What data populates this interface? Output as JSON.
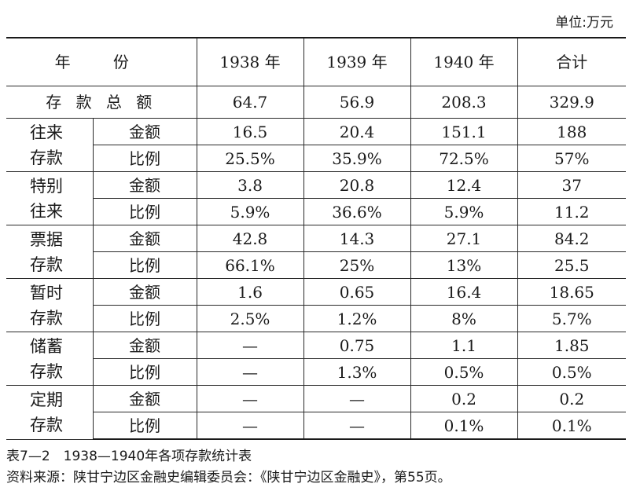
{
  "unit_label": "单位:万元",
  "header": {
    "year_label": "年 份",
    "cols": [
      "1938 年",
      "1939 年",
      "1940 年",
      "合计"
    ]
  },
  "total_row": {
    "label": "存 款 总 额",
    "values": [
      "64.7",
      "56.9",
      "208.3",
      "329.9"
    ]
  },
  "groups": [
    {
      "name_line1": "往来",
      "name_line2": "存款",
      "rows": [
        {
          "label": "金额",
          "values": [
            "16.5",
            "20.4",
            "151.1",
            "188"
          ]
        },
        {
          "label": "比例",
          "values": [
            "25.5%",
            "35.9%",
            "72.5%",
            "57%"
          ]
        }
      ]
    },
    {
      "name_line1": "特别",
      "name_line2": "往来",
      "rows": [
        {
          "label": "金额",
          "values": [
            "3.8",
            "20.8",
            "12.4",
            "37"
          ]
        },
        {
          "label": "比例",
          "values": [
            "5.9%",
            "36.6%",
            "5.9%",
            "11.2"
          ]
        }
      ]
    },
    {
      "name_line1": "票据",
      "name_line2": "存款",
      "rows": [
        {
          "label": "金额",
          "values": [
            "42.8",
            "14.3",
            "27.1",
            "84.2"
          ]
        },
        {
          "label": "比例",
          "values": [
            "66.1%",
            "25%",
            "13%",
            "25.5"
          ]
        }
      ]
    },
    {
      "name_line1": "暂时",
      "name_line2": "存款",
      "rows": [
        {
          "label": "金额",
          "values": [
            "1.6",
            "0.65",
            "16.4",
            "18.65"
          ]
        },
        {
          "label": "比例",
          "values": [
            "2.5%",
            "1.2%",
            "8%",
            "5.7%"
          ]
        }
      ]
    },
    {
      "name_line1": "储蓄",
      "name_line2": "存款",
      "rows": [
        {
          "label": "金额",
          "values": [
            "—",
            "0.75",
            "1.1",
            "1.85"
          ]
        },
        {
          "label": "比例",
          "values": [
            "—",
            "1.3%",
            "0.5%",
            "0.5%"
          ]
        }
      ]
    },
    {
      "name_line1": "定期",
      "name_line2": "存款",
      "rows": [
        {
          "label": "金额",
          "values": [
            "—",
            "—",
            "0.2",
            "0.2"
          ]
        },
        {
          "label": "比例",
          "values": [
            "—",
            "—",
            "0.1%",
            "0.1%"
          ]
        }
      ]
    }
  ],
  "caption": {
    "line1": "表7—2　1938—1940年各项存款统计表",
    "line2": "资料来源：陕甘宁边区金融史编辑委员会：《陕甘宁边区金融史》，第55页。"
  }
}
